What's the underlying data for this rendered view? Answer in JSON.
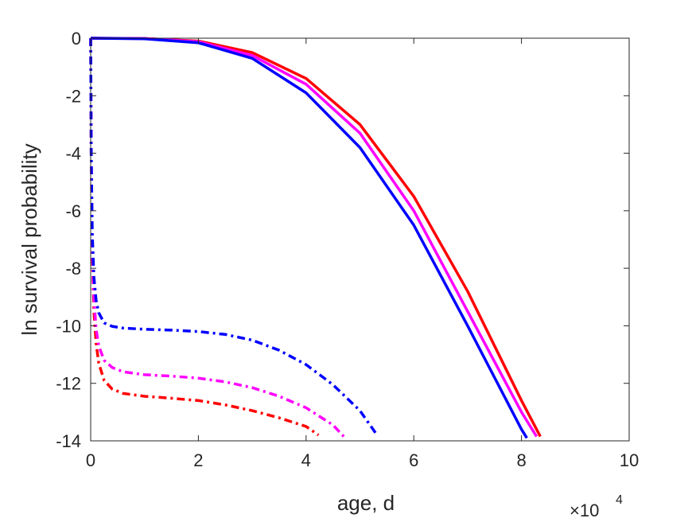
{
  "chart_data": {
    "type": "line",
    "xlabel": "age, d",
    "ylabel": "ln survival probability",
    "x_multiplier": {
      "base": "10",
      "exponent": "4",
      "symbol": "×"
    },
    "xlim": [
      0,
      100000
    ],
    "ylim": [
      -14,
      0
    ],
    "xticks": [
      0,
      20000,
      40000,
      60000,
      80000,
      100000
    ],
    "xtick_labels": [
      "0",
      "2",
      "4",
      "6",
      "8",
      "10"
    ],
    "yticks": [
      0,
      -2,
      -4,
      -6,
      -8,
      -10,
      -12,
      -14
    ],
    "ytick_labels": [
      "0",
      "-2",
      "-4",
      "-6",
      "-8",
      "-10",
      "-12",
      "-14"
    ],
    "grid": false,
    "series": [
      {
        "color": "#ff0000",
        "dash": "solid",
        "x": [
          0,
          10000,
          20000,
          30000,
          40000,
          50000,
          60000,
          70000,
          80000,
          83500
        ],
        "y": [
          0,
          -0.01,
          -0.1,
          -0.5,
          -1.4,
          -3.0,
          -5.5,
          -8.8,
          -12.6,
          -13.85
        ]
      },
      {
        "color": "#ff00ff",
        "dash": "solid",
        "x": [
          0,
          10000,
          20000,
          30000,
          40000,
          50000,
          60000,
          70000,
          80000,
          82800
        ],
        "y": [
          0,
          -0.01,
          -0.12,
          -0.6,
          -1.6,
          -3.3,
          -6.0,
          -9.5,
          -13.0,
          -13.85
        ]
      },
      {
        "color": "#0000ff",
        "dash": "solid",
        "x": [
          0,
          10000,
          20000,
          30000,
          40000,
          50000,
          60000,
          70000,
          80000,
          81000
        ],
        "y": [
          0,
          -0.02,
          -0.16,
          -0.7,
          -1.9,
          -3.8,
          -6.5,
          -10.0,
          -13.6,
          -13.9
        ]
      },
      {
        "color": "#ff0000",
        "dash": "dashdot",
        "x": [
          0,
          100,
          300,
          600,
          1000,
          1500,
          2500,
          4000,
          6000,
          10000,
          15000,
          20000,
          25000,
          30000,
          35000,
          40000,
          42300
        ],
        "y": [
          0,
          -4.0,
          -7.5,
          -9.5,
          -10.6,
          -11.3,
          -11.9,
          -12.2,
          -12.35,
          -12.45,
          -12.52,
          -12.6,
          -12.75,
          -12.95,
          -13.2,
          -13.5,
          -13.8
        ]
      },
      {
        "color": "#ff00ff",
        "dash": "dashdot",
        "x": [
          0,
          100,
          300,
          600,
          1000,
          1500,
          2500,
          4000,
          6000,
          10000,
          15000,
          20000,
          25000,
          30000,
          35000,
          40000,
          45000,
          47000
        ],
        "y": [
          0,
          -4.0,
          -7.2,
          -9.0,
          -10.1,
          -10.7,
          -11.2,
          -11.45,
          -11.6,
          -11.7,
          -11.75,
          -11.82,
          -11.95,
          -12.15,
          -12.45,
          -12.85,
          -13.45,
          -13.85
        ]
      },
      {
        "color": "#0000ff",
        "dash": "dashdot",
        "x": [
          0,
          100,
          300,
          600,
          1000,
          1500,
          2500,
          4000,
          6000,
          10000,
          15000,
          20000,
          25000,
          30000,
          35000,
          40000,
          45000,
          50000,
          53000
        ],
        "y": [
          0,
          -4.0,
          -6.8,
          -8.3,
          -9.1,
          -9.55,
          -9.9,
          -10.02,
          -10.08,
          -10.12,
          -10.15,
          -10.2,
          -10.3,
          -10.5,
          -10.85,
          -11.35,
          -12.05,
          -12.95,
          -13.75
        ]
      }
    ]
  }
}
